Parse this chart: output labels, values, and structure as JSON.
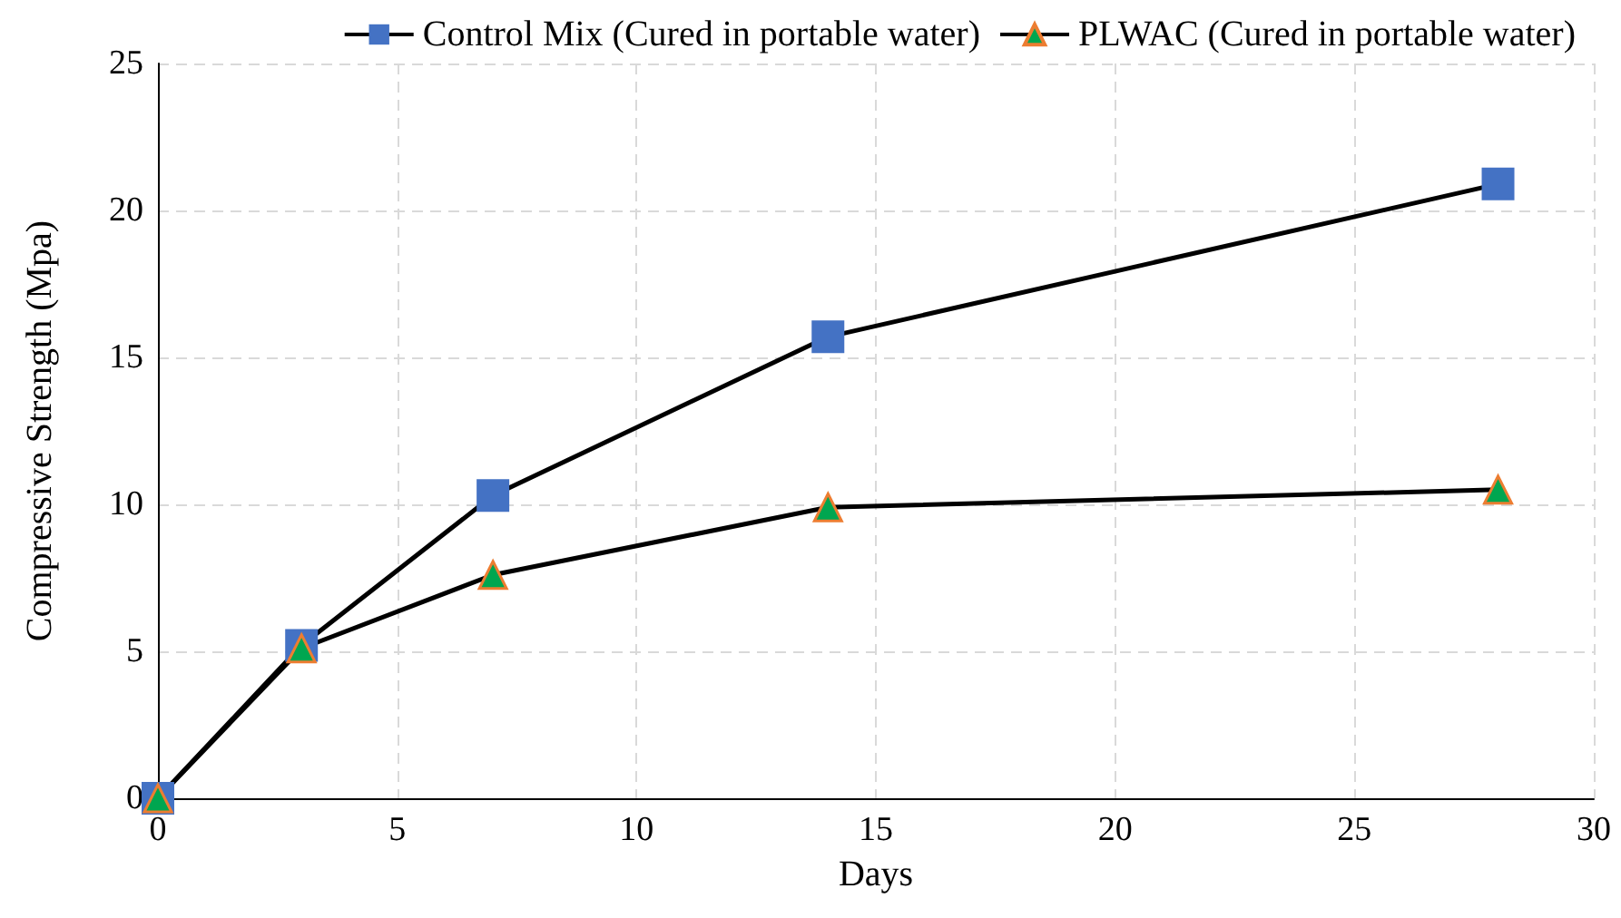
{
  "chart_data": {
    "type": "line",
    "xlabel": "Days",
    "ylabel": "Compressive Strength (Mpa)",
    "x": [
      0,
      3,
      7,
      14,
      28
    ],
    "series": [
      {
        "name": "Control Mix (Cured in portable water)",
        "color": "#4472c4",
        "marker": "square",
        "values": [
          0,
          5.2,
          10.3,
          15.7,
          20.9
        ]
      },
      {
        "name": "PLWAC (Cured in portable water)",
        "color": "#00a650",
        "marker": "triangle",
        "values": [
          0,
          5.1,
          7.6,
          9.9,
          10.5
        ]
      }
    ],
    "xlim": [
      0,
      30
    ],
    "xticks": [
      0,
      5,
      10,
      15,
      20,
      25,
      30
    ],
    "ylim": [
      0,
      25
    ],
    "yticks": [
      0,
      5,
      10,
      15,
      20,
      25
    ],
    "grid": true,
    "legend": "top right",
    "line_style": "solid"
  }
}
